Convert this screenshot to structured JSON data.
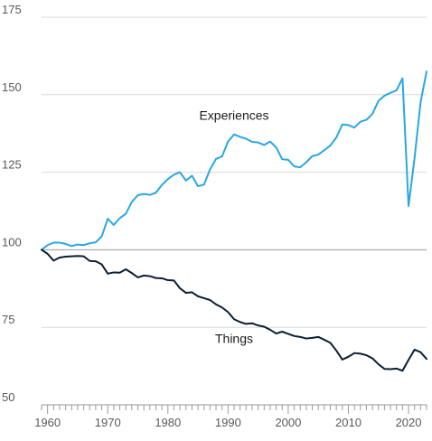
{
  "chart_data": {
    "type": "line",
    "title": "",
    "xlabel": "",
    "ylabel": "",
    "xlim": [
      1959,
      2023
    ],
    "ylim": [
      50,
      175
    ],
    "y_ticks": [
      "50",
      "75",
      "100",
      "125",
      "150",
      "175"
    ],
    "x_ticks": [
      "1960",
      "1970",
      "1980",
      "1990",
      "2000",
      "2010",
      "2020"
    ],
    "grid": "horizontal",
    "legend": "direct labels on lines",
    "series": [
      {
        "name": "Experiences",
        "color": "#29a8e0",
        "x": [
          1959,
          1960,
          1961,
          1962,
          1963,
          1964,
          1965,
          1966,
          1967,
          1968,
          1969,
          1970,
          1971,
          1972,
          1973,
          1974,
          1975,
          1976,
          1977,
          1978,
          1979,
          1980,
          1981,
          1982,
          1983,
          1984,
          1985,
          1986,
          1987,
          1988,
          1989,
          1990,
          1991,
          1992,
          1993,
          1994,
          1995,
          1996,
          1997,
          1998,
          1999,
          2000,
          2001,
          2002,
          2003,
          2004,
          2005,
          2006,
          2007,
          2008,
          2009,
          2010,
          2011,
          2012,
          2013,
          2014,
          2015,
          2016,
          2017,
          2018,
          2019,
          2020,
          2021,
          2022,
          2023
        ],
        "values": [
          100,
          101.5,
          102.3,
          102.3,
          101.9,
          101.2,
          101.7,
          101.5,
          102.1,
          102.4,
          104.3,
          110.0,
          108.0,
          110.2,
          111.6,
          115.4,
          117.6,
          118.0,
          117.7,
          118.4,
          120.9,
          122.8,
          124.2,
          125.0,
          122.3,
          123.9,
          120.5,
          121.0,
          125.9,
          129.3,
          130.1,
          134.9,
          137.2,
          136.4,
          135.8,
          134.8,
          134.6,
          133.8,
          134.9,
          133.0,
          129.2,
          129.0,
          126.9,
          126.6,
          128.2,
          130.2,
          130.7,
          132.1,
          133.6,
          136.2,
          140.4,
          140.2,
          139.4,
          141.3,
          141.9,
          143.8,
          148.0,
          149.7,
          150.6,
          151.4,
          155.3,
          114.1,
          129.5,
          147.5,
          157.5
        ]
      },
      {
        "name": "Things",
        "color": "#0b1f33",
        "x": [
          1959,
          1960,
          1961,
          1962,
          1963,
          1964,
          1965,
          1966,
          1967,
          1968,
          1969,
          1970,
          1971,
          1972,
          1973,
          1974,
          1975,
          1976,
          1977,
          1978,
          1979,
          1980,
          1981,
          1982,
          1983,
          1984,
          1985,
          1986,
          1987,
          1988,
          1989,
          1990,
          1991,
          1992,
          1993,
          1994,
          1995,
          1996,
          1997,
          1998,
          1999,
          2000,
          2001,
          2002,
          2003,
          2004,
          2005,
          2006,
          2007,
          2008,
          2009,
          2010,
          2011,
          2012,
          2013,
          2014,
          2015,
          2016,
          2017,
          2018,
          2019,
          2020,
          2021,
          2022,
          2023
        ],
        "values": [
          100,
          98.7,
          96.5,
          97.5,
          97.8,
          97.9,
          98.0,
          97.9,
          96.4,
          96.3,
          95.3,
          92.3,
          92.7,
          92.6,
          93.7,
          92.5,
          91.1,
          91.7,
          91.5,
          90.9,
          90.8,
          90.2,
          90.1,
          87.6,
          86.1,
          86.3,
          85.0,
          84.4,
          83.8,
          82.4,
          81.4,
          79.9,
          77.6,
          76.7,
          76.1,
          76.3,
          75.6,
          75.2,
          74.2,
          73.0,
          73.6,
          72.9,
          72.2,
          71.9,
          71.4,
          71.6,
          71.9,
          71.0,
          70.0,
          67.5,
          64.6,
          65.5,
          66.7,
          66.5,
          66.0,
          65.0,
          63.1,
          61.6,
          61.5,
          61.7,
          61.0,
          64.5,
          67.8,
          67.0,
          64.8
        ]
      }
    ],
    "annotations": [
      {
        "text": "Experiences",
        "x": 1991,
        "y": 142
      },
      {
        "text": "Things",
        "x": 1991,
        "y": 70
      }
    ]
  }
}
